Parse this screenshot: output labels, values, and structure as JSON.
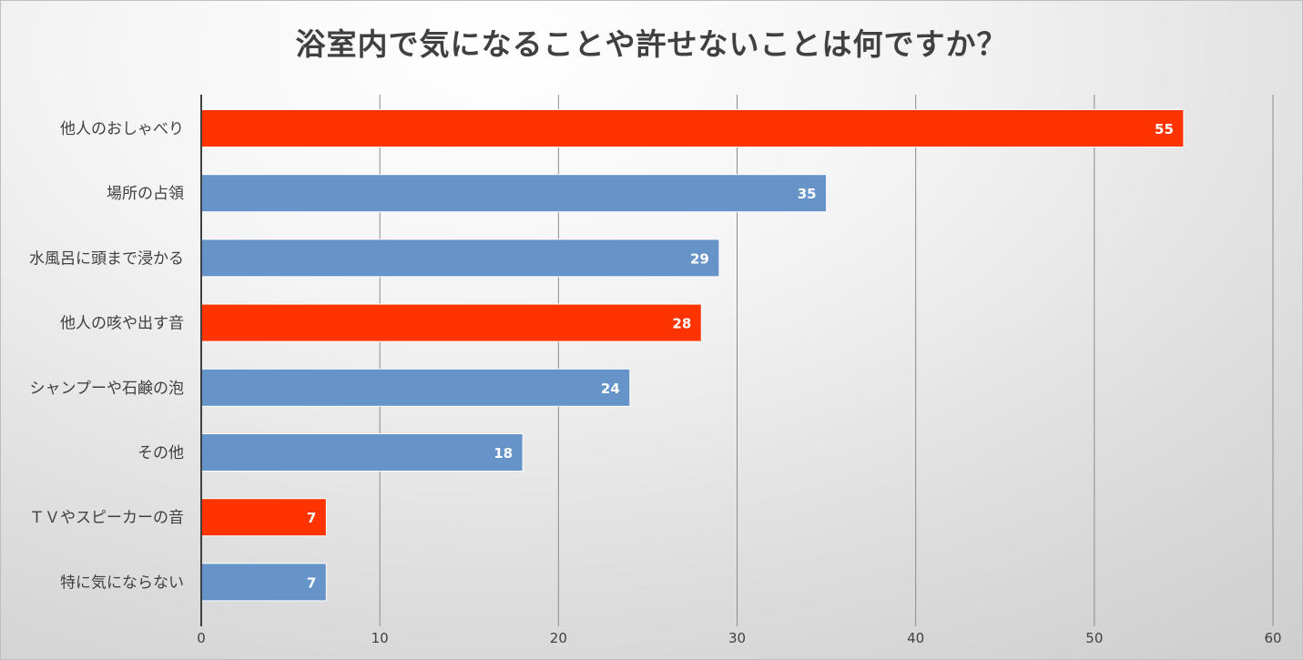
{
  "chart_data": {
    "type": "bar",
    "orientation": "horizontal",
    "title": "浴室内で気になることや許せないことは何ですか？",
    "categories": [
      "他人のおしゃべり",
      "場所の占領",
      "水風呂に頭まで浸かる",
      "他人の咳や出す音",
      "シャンプーや石鹸の泡",
      "その他",
      "ＴＶやスピーカーの音",
      "特に気にならない"
    ],
    "values": [
      55,
      35,
      29,
      28,
      24,
      18,
      7,
      7
    ],
    "highlighted": [
      true,
      false,
      false,
      true,
      false,
      false,
      true,
      false
    ],
    "xlim": [
      0,
      60
    ],
    "xticks": [
      0,
      10,
      20,
      30,
      40,
      50,
      60
    ],
    "grid": true,
    "legend": "none",
    "colors": {
      "highlight": "#ff3300",
      "normal": "#6794c8",
      "grid": "#8c8c8c",
      "axis": "#404040",
      "text": "#404040",
      "data_label": "#ffffff"
    }
  }
}
